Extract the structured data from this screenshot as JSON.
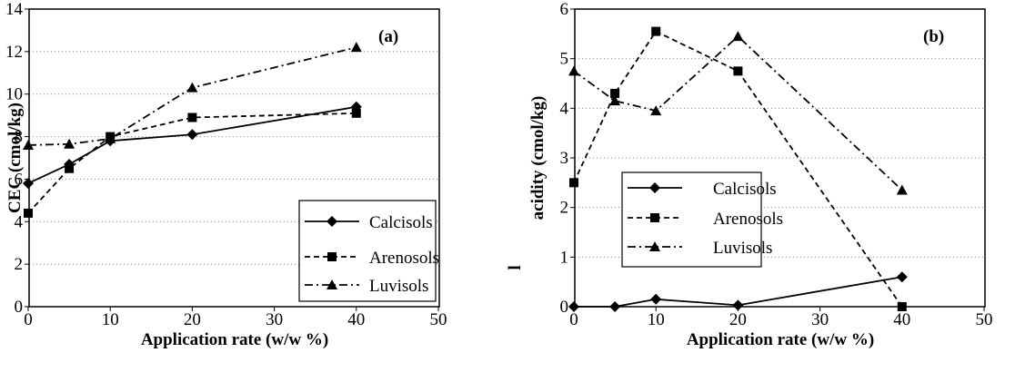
{
  "chart_data": [
    {
      "type": "line",
      "panel_label": "(a)",
      "xlabel": "Application rate (w/w %)",
      "ylabel": "CEC (cmol/kg)",
      "xlim": [
        0,
        50
      ],
      "ylim": [
        0,
        14
      ],
      "xticks": [
        0,
        10,
        20,
        30,
        40,
        50
      ],
      "yticks": [
        0,
        2,
        4,
        6,
        8,
        10,
        12,
        14
      ],
      "grid": "horizontal dotted",
      "legend_position": "bottom-right",
      "series": [
        {
          "name": "Calcisols",
          "marker": "diamond",
          "dash": "solid",
          "x": [
            0,
            5,
            10,
            20,
            40
          ],
          "y": [
            5.8,
            6.7,
            7.8,
            8.1,
            9.4
          ]
        },
        {
          "name": "Arenosols",
          "marker": "square",
          "dash": "dashed",
          "x": [
            0,
            5,
            10,
            20,
            40
          ],
          "y": [
            4.4,
            6.5,
            8.0,
            8.9,
            9.1
          ]
        },
        {
          "name": "Luvisols",
          "marker": "triangle",
          "dash": "dashdot",
          "x": [
            0,
            5,
            10,
            20,
            40
          ],
          "y": [
            7.6,
            7.65,
            7.9,
            10.3,
            12.2
          ]
        }
      ]
    },
    {
      "type": "line",
      "panel_label": "(b)",
      "xlabel": "Application rate (w/w %)",
      "ylabel": "acidity (cmol/kg)",
      "ylabel_fragment": "l",
      "xlim": [
        0,
        50
      ],
      "ylim": [
        0,
        6
      ],
      "xticks": [
        0,
        10,
        20,
        30,
        40,
        50
      ],
      "yticks": [
        0,
        1,
        2,
        3,
        4,
        5,
        6
      ],
      "grid": "horizontal dotted",
      "legend_position": "bottom-left",
      "series": [
        {
          "name": "Calcisols",
          "marker": "diamond",
          "dash": "solid",
          "x": [
            0,
            5,
            10,
            20,
            40
          ],
          "y": [
            0.0,
            0.0,
            0.15,
            0.03,
            0.6
          ]
        },
        {
          "name": "Arenosols",
          "marker": "square",
          "dash": "dashed",
          "x": [
            0,
            5,
            10,
            20,
            40
          ],
          "y": [
            2.5,
            4.3,
            5.55,
            4.75,
            0.0
          ]
        },
        {
          "name": "Luvisols",
          "marker": "triangle",
          "dash": "dashdot",
          "x": [
            0,
            5,
            10,
            20,
            40
          ],
          "y": [
            4.75,
            4.15,
            3.95,
            5.45,
            2.35
          ]
        }
      ]
    }
  ]
}
